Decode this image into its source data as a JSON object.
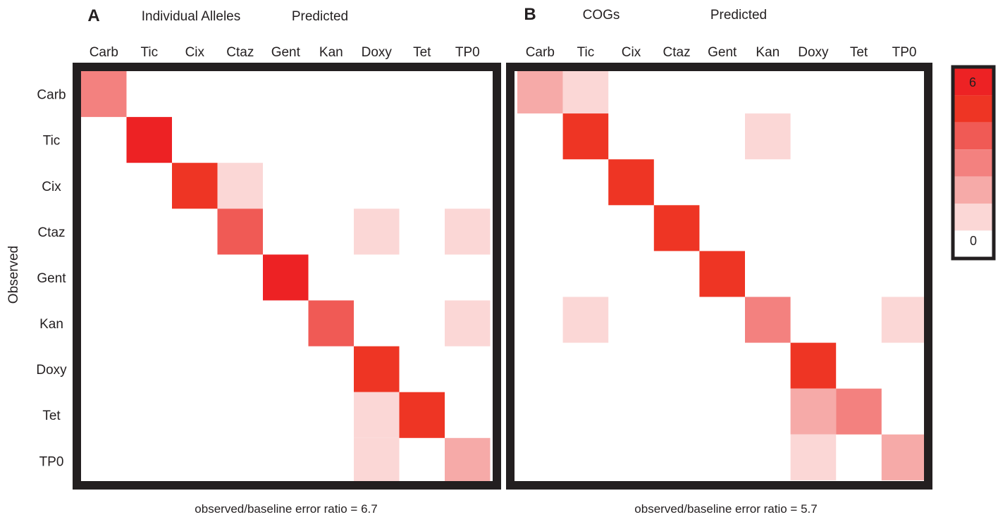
{
  "chart_data": [
    {
      "type": "heatmap",
      "panel_letter": "A",
      "title": "Individual Alleles",
      "xlabel": "Predicted",
      "ylabel": "Observed",
      "x_categories": [
        "Carb",
        "Tic",
        "Cix",
        "Ctaz",
        "Gent",
        "Kan",
        "Doxy",
        "Tet",
        "TP0"
      ],
      "y_categories": [
        "Carb",
        "Tic",
        "Cix",
        "Ctaz",
        "Gent",
        "Kan",
        "Doxy",
        "Tet",
        "TP0"
      ],
      "values": [
        [
          3,
          0,
          0,
          0,
          0,
          0,
          0,
          0,
          0
        ],
        [
          0,
          6,
          0,
          0,
          0,
          0,
          0,
          0,
          0
        ],
        [
          0,
          0,
          5,
          1,
          0,
          0,
          0,
          0,
          0
        ],
        [
          0,
          0,
          0,
          4,
          0,
          0,
          1,
          0,
          1
        ],
        [
          0,
          0,
          0,
          0,
          6,
          0,
          0,
          0,
          0
        ],
        [
          0,
          0,
          0,
          0,
          0,
          4,
          0,
          0,
          1
        ],
        [
          0,
          0,
          0,
          0,
          0,
          0,
          5,
          0,
          0
        ],
        [
          0,
          0,
          0,
          0,
          0,
          0,
          1,
          5,
          0
        ],
        [
          0,
          0,
          0,
          0,
          0,
          0,
          1,
          0,
          2
        ]
      ],
      "footer": "observed/baseline error ratio = 6.7"
    },
    {
      "type": "heatmap",
      "panel_letter": "B",
      "title": "COGs",
      "xlabel": "Predicted",
      "ylabel": "",
      "x_categories": [
        "Carb",
        "Tic",
        "Cix",
        "Ctaz",
        "Gent",
        "Kan",
        "Doxy",
        "Tet",
        "TP0"
      ],
      "y_categories": [
        "Carb",
        "Tic",
        "Cix",
        "Ctaz",
        "Gent",
        "Kan",
        "Doxy",
        "Tet",
        "TP0"
      ],
      "values": [
        [
          2,
          1,
          0,
          0,
          0,
          0,
          0,
          0,
          0
        ],
        [
          0,
          5,
          0,
          0,
          0,
          1,
          0,
          0,
          0
        ],
        [
          0,
          0,
          5,
          0,
          0,
          0,
          0,
          0,
          0
        ],
        [
          0,
          0,
          0,
          5,
          0,
          0,
          0,
          0,
          0
        ],
        [
          0,
          0,
          0,
          0,
          5,
          0,
          0,
          0,
          0
        ],
        [
          0,
          1,
          0,
          0,
          0,
          3,
          0,
          0,
          1
        ],
        [
          0,
          0,
          0,
          0,
          0,
          0,
          5,
          0,
          0
        ],
        [
          0,
          0,
          0,
          0,
          0,
          0,
          2,
          3,
          0
        ],
        [
          0,
          0,
          0,
          0,
          0,
          0,
          1,
          0,
          2
        ]
      ],
      "footer": "observed/baseline error ratio = 5.7"
    }
  ],
  "colorbar": {
    "min_label": "0",
    "max_label": "6",
    "steps": [
      6,
      5,
      4,
      3,
      2,
      1,
      0
    ],
    "colors": [
      "#ed2224",
      "#ee3524",
      "#f05a55",
      "#f3817f",
      "#f6aaa8",
      "#fbd7d6",
      "#ffffff"
    ]
  },
  "colors": {
    "frame": "#231f20",
    "text": "#231f20"
  }
}
